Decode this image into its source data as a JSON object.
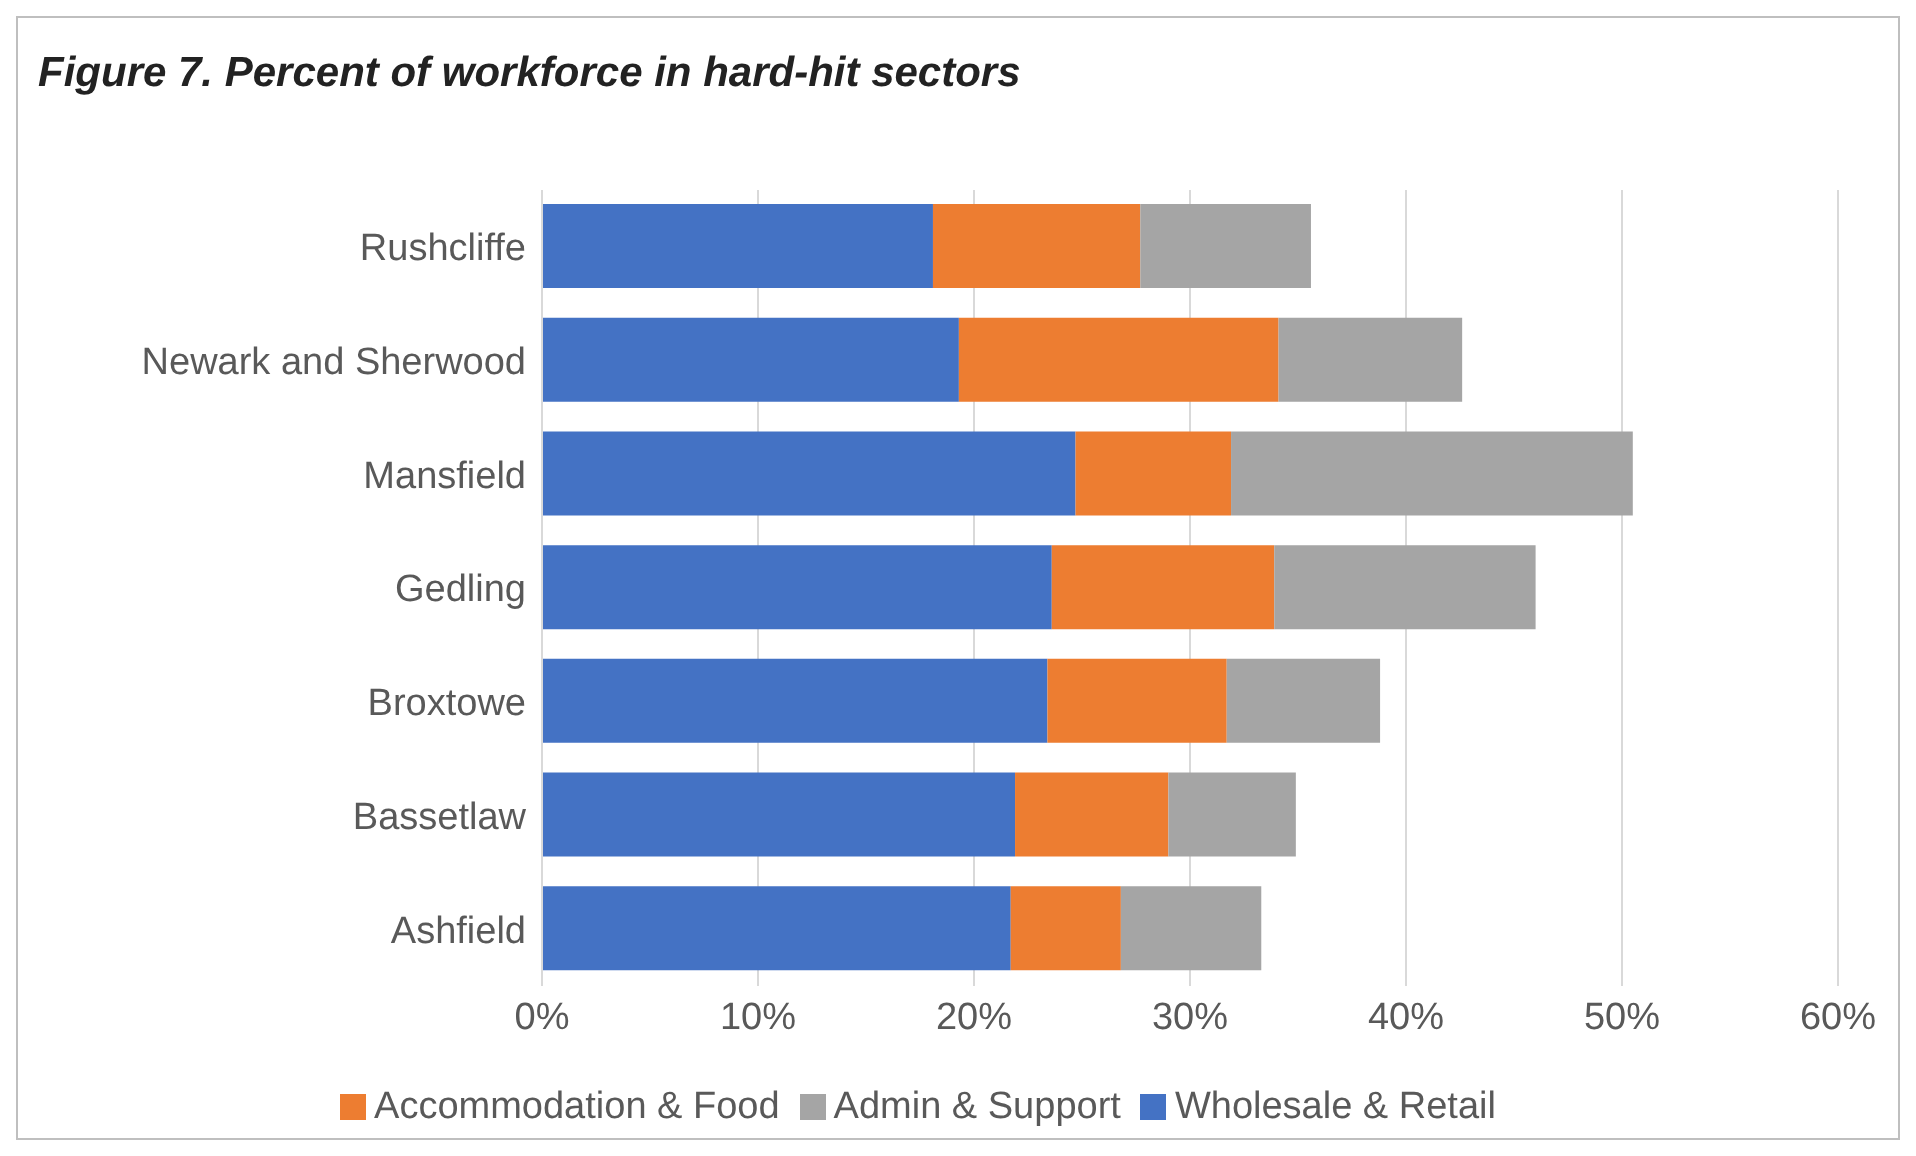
{
  "chart_data": {
    "type": "bar",
    "title": "Figure 7. Percent of workforce in hard-hit sectors",
    "orientation": "horizontal",
    "stacked": true,
    "categories": [
      "Rushcliffe",
      "Newark and Sherwood",
      "Mansfield",
      "Gedling",
      "Broxtowe",
      "Bassetlaw",
      "Ashfield"
    ],
    "series": [
      {
        "name": "Wholesale & Retail",
        "color": "#4472c4",
        "values": [
          18.1,
          19.3,
          24.7,
          23.6,
          23.4,
          21.9,
          21.7
        ]
      },
      {
        "name": "Accommodation & Food",
        "color": "#ed7d31",
        "values": [
          9.6,
          14.8,
          7.2,
          10.3,
          8.3,
          7.1,
          5.1
        ]
      },
      {
        "name": "Admin & Support",
        "color": "#a5a5a5",
        "values": [
          7.9,
          8.5,
          18.6,
          12.1,
          7.1,
          5.9,
          6.5
        ]
      }
    ],
    "xlim": [
      0,
      60
    ],
    "xticks": [
      {
        "value": 0,
        "label": "0%"
      },
      {
        "value": 10,
        "label": "10%"
      },
      {
        "value": 20,
        "label": "20%"
      },
      {
        "value": 30,
        "label": "30%"
      },
      {
        "value": 40,
        "label": "40%"
      },
      {
        "value": 50,
        "label": "50%"
      },
      {
        "value": 60,
        "label": "60%"
      }
    ],
    "grid": "x",
    "legend": "bottom"
  }
}
